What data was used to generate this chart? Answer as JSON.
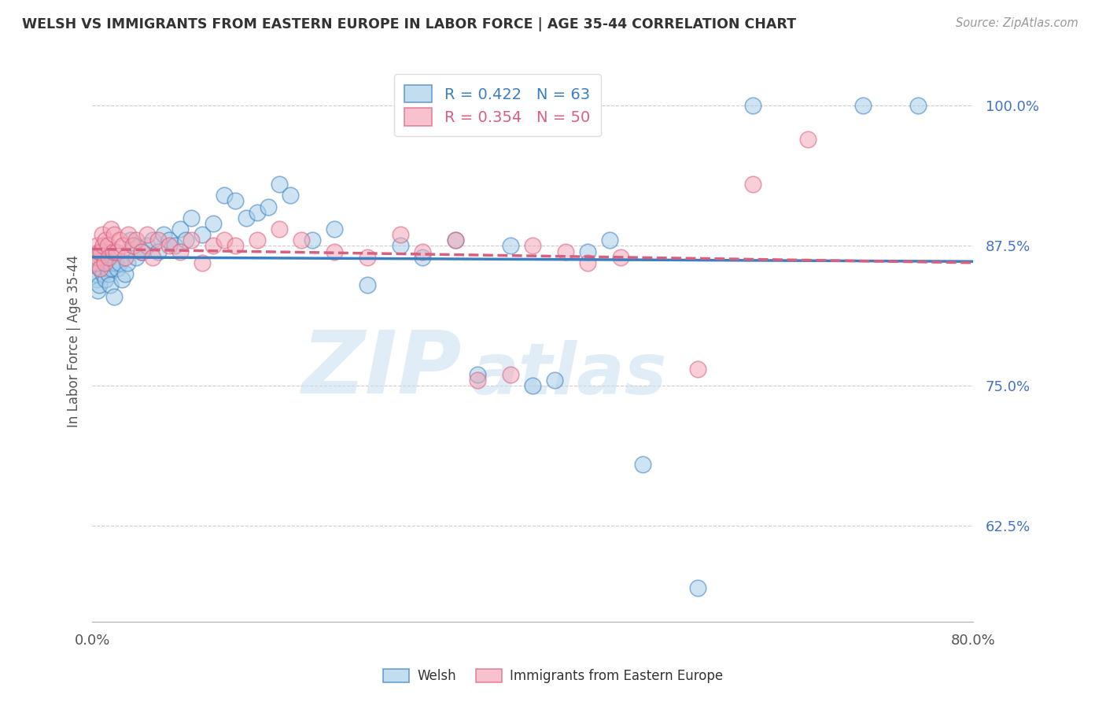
{
  "title": "WELSH VS IMMIGRANTS FROM EASTERN EUROPE IN LABOR FORCE | AGE 35-44 CORRELATION CHART",
  "source": "Source: ZipAtlas.com",
  "ylabel": "In Labor Force | Age 35-44",
  "xlim": [
    0.0,
    80.0
  ],
  "ylim": [
    54.0,
    104.0
  ],
  "yticks": [
    62.5,
    75.0,
    87.5,
    100.0
  ],
  "ytick_labels": [
    "62.5%",
    "75.0%",
    "87.5%",
    "100.0%"
  ],
  "legend_r_blue": "R = 0.422",
  "legend_n_blue": "N = 63",
  "legend_r_pink": "R = 0.354",
  "legend_n_pink": "N = 50",
  "legend_label_blue": "Welsh",
  "legend_label_pink": "Immigrants from Eastern Europe",
  "blue_color": "#a8cfe8",
  "pink_color": "#f4a8b8",
  "trend_blue_color": "#3a7fc1",
  "trend_pink_color": "#d95f7e",
  "watermark_zip": "ZIP",
  "watermark_atlas": "atlas",
  "blue_x": [
    0.3,
    0.4,
    0.5,
    0.5,
    0.6,
    0.7,
    0.8,
    0.9,
    1.0,
    1.1,
    1.2,
    1.3,
    1.4,
    1.5,
    1.6,
    1.7,
    1.8,
    2.0,
    2.1,
    2.3,
    2.5,
    2.7,
    3.0,
    3.2,
    3.5,
    3.8,
    4.0,
    4.5,
    5.0,
    5.5,
    6.0,
    6.5,
    7.0,
    7.5,
    8.0,
    8.5,
    9.0,
    10.0,
    11.0,
    12.0,
    13.0,
    14.0,
    15.0,
    16.0,
    17.0,
    18.0,
    20.0,
    22.0,
    25.0,
    28.0,
    30.0,
    33.0,
    35.0,
    38.0,
    40.0,
    42.0,
    45.0,
    47.0,
    50.0,
    55.0,
    60.0,
    70.0,
    75.0
  ],
  "blue_y": [
    85.0,
    84.5,
    83.5,
    86.0,
    84.0,
    85.5,
    86.5,
    87.0,
    85.0,
    86.5,
    84.5,
    87.0,
    85.5,
    85.0,
    84.0,
    86.0,
    85.5,
    83.0,
    86.0,
    85.5,
    86.0,
    84.5,
    85.0,
    86.0,
    88.0,
    87.5,
    86.5,
    87.0,
    87.5,
    88.0,
    87.0,
    88.5,
    88.0,
    87.5,
    89.0,
    88.0,
    90.0,
    88.5,
    89.5,
    92.0,
    91.5,
    90.0,
    90.5,
    91.0,
    93.0,
    92.0,
    88.0,
    89.0,
    84.0,
    87.5,
    86.5,
    88.0,
    76.0,
    87.5,
    75.0,
    75.5,
    87.0,
    88.0,
    68.0,
    57.0,
    100.0,
    100.0,
    100.0
  ],
  "pink_x": [
    0.3,
    0.4,
    0.5,
    0.6,
    0.7,
    0.8,
    0.9,
    1.0,
    1.1,
    1.2,
    1.4,
    1.5,
    1.7,
    1.9,
    2.0,
    2.2,
    2.5,
    2.8,
    3.0,
    3.3,
    3.7,
    4.0,
    4.5,
    5.0,
    5.5,
    6.0,
    7.0,
    8.0,
    9.0,
    10.0,
    11.0,
    12.0,
    13.0,
    15.0,
    17.0,
    19.0,
    22.0,
    25.0,
    28.0,
    30.0,
    33.0,
    35.0,
    38.0,
    40.0,
    43.0,
    45.0,
    48.0,
    55.0,
    60.0,
    65.0
  ],
  "pink_y": [
    86.0,
    87.5,
    86.5,
    87.0,
    85.5,
    87.0,
    88.5,
    87.5,
    86.0,
    88.0,
    87.5,
    86.5,
    89.0,
    87.0,
    88.5,
    87.0,
    88.0,
    87.5,
    86.5,
    88.5,
    87.5,
    88.0,
    87.0,
    88.5,
    86.5,
    88.0,
    87.5,
    87.0,
    88.0,
    86.0,
    87.5,
    88.0,
    87.5,
    88.0,
    89.0,
    88.0,
    87.0,
    86.5,
    88.5,
    87.0,
    88.0,
    75.5,
    76.0,
    87.5,
    87.0,
    86.0,
    86.5,
    76.5,
    93.0,
    97.0
  ]
}
